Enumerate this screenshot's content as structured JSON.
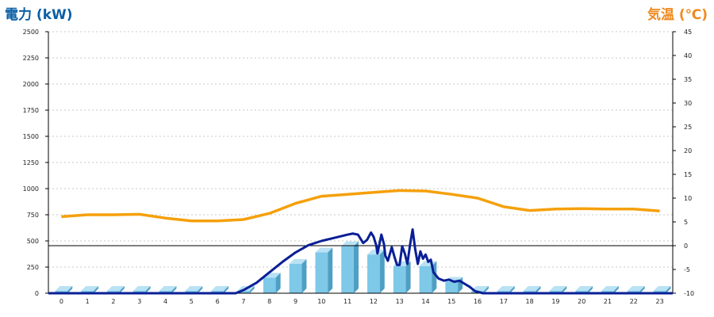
{
  "left_axis_title": "電力 (kW)",
  "right_axis_title": "気温 (℃)",
  "colors": {
    "bar": "#7ec8e8",
    "power_line": "#0a1f96",
    "temp_line": "#f5a00a",
    "left_title": "#0b5fa5",
    "right_title": "#f0891d"
  },
  "chart_data": {
    "type": "bar",
    "categories": [
      "0",
      "1",
      "2",
      "3",
      "4",
      "5",
      "6",
      "7",
      "8",
      "9",
      "10",
      "11",
      "12",
      "13",
      "14",
      "15",
      "16",
      "17",
      "18",
      "19",
      "20",
      "21",
      "22",
      "23"
    ],
    "y_left": {
      "label": "電力 (kW)",
      "ylim": [
        0,
        2500
      ],
      "ticks": [
        0,
        250,
        500,
        750,
        1000,
        1250,
        1500,
        1750,
        2000,
        2250,
        2500
      ]
    },
    "y_right": {
      "label": "気温 (℃)",
      "ylim": [
        -10,
        45
      ],
      "ticks": [
        -10,
        -5,
        0,
        5,
        10,
        15,
        20,
        25,
        30,
        35,
        40,
        45
      ]
    },
    "grid": true,
    "series": [
      {
        "type": "bar",
        "axis": "left",
        "values": [
          0,
          0,
          0,
          0,
          0,
          0,
          0,
          5,
          150,
          280,
          390,
          450,
          370,
          260,
          260,
          110,
          20,
          0,
          0,
          0,
          0,
          0,
          0,
          0
        ]
      },
      {
        "type": "line",
        "axis": "left",
        "x": [
          6.7,
          7.0,
          7.5,
          8.0,
          8.5,
          9.0,
          9.5,
          10.0,
          10.5,
          11.0,
          11.2,
          11.4,
          11.6,
          11.75,
          11.9,
          12.0,
          12.1,
          12.15,
          12.3,
          12.4,
          12.45,
          12.55,
          12.7,
          12.8,
          12.9,
          13.0,
          13.1,
          13.2,
          13.3,
          13.4,
          13.5,
          13.6,
          13.7,
          13.8,
          13.9,
          14.0,
          14.1,
          14.2,
          14.3,
          14.5,
          14.7,
          14.9,
          15.1,
          15.3,
          15.5,
          15.7,
          15.9,
          16.2
        ],
        "values": [
          0,
          30,
          100,
          200,
          300,
          390,
          460,
          500,
          530,
          560,
          570,
          560,
          480,
          510,
          580,
          540,
          460,
          380,
          560,
          470,
          360,
          310,
          440,
          350,
          270,
          270,
          450,
          380,
          280,
          460,
          610,
          420,
          280,
          400,
          330,
          370,
          300,
          320,
          200,
          140,
          120,
          130,
          110,
          120,
          90,
          60,
          20,
          0
        ]
      },
      {
        "type": "line",
        "axis": "right",
        "values": [
          6.1,
          6.5,
          6.5,
          6.6,
          5.8,
          5.2,
          5.2,
          5.5,
          6.8,
          8.9,
          10.4,
          10.8,
          11.2,
          11.6,
          11.5,
          10.8,
          10.0,
          8.2,
          7.4,
          7.7,
          7.8,
          7.7,
          7.7,
          7.3
        ]
      }
    ]
  }
}
